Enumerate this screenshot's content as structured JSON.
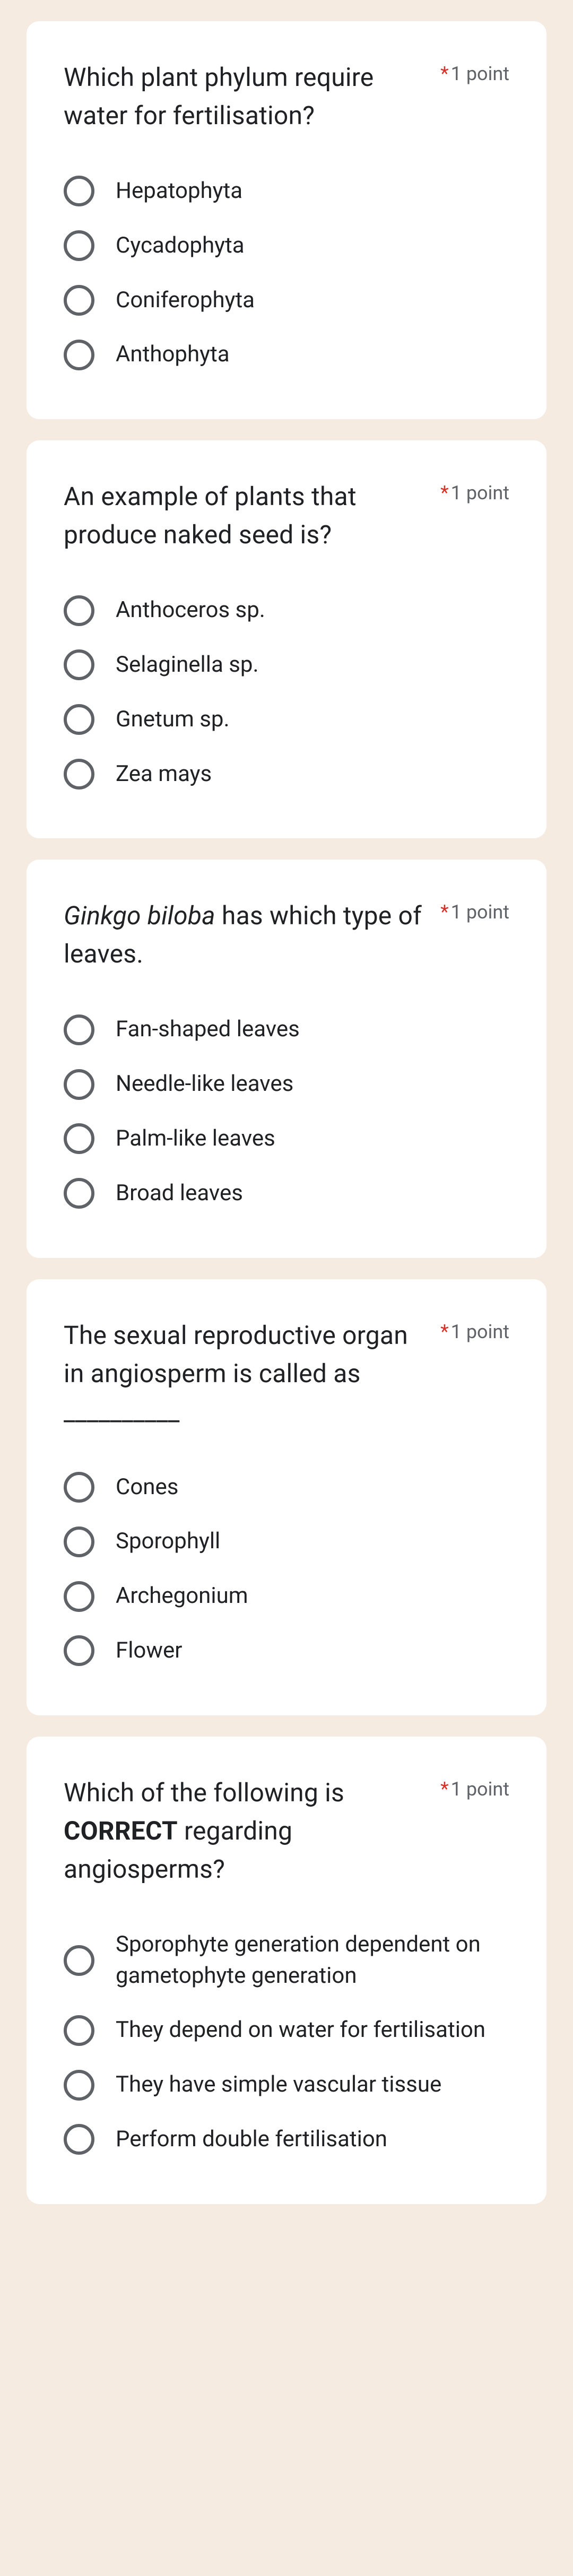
{
  "points_label": "1 point",
  "questions": [
    {
      "text_html": "Which plant phylum require water for fertilisation?",
      "options": [
        "Hepatophyta",
        "Cycadophyta",
        "Coniferophyta",
        "Anthophyta"
      ]
    },
    {
      "text_html": "An example of plants that produce naked seed is?",
      "options": [
        "Anthoceros sp.",
        "Selaginella sp.",
        "Gnetum sp.",
        "Zea mays"
      ]
    },
    {
      "text_html": "<em>Ginkgo biloba</em> has which type of leaves.",
      "options": [
        "Fan-shaped leaves",
        "Needle-like leaves",
        "Palm-like leaves",
        "Broad leaves"
      ]
    },
    {
      "text_html": "The sexual reproductive organ in angiosperm is called as __________",
      "options": [
        "Cones",
        "Sporophyll",
        "Archegonium",
        "Flower"
      ]
    },
    {
      "text_html": "Which of the following is <b>CORRECT</b> regarding angiosperms?",
      "options": [
        "Sporophyte generation dependent on gametophyte generation",
        "They depend on water for fertilisation",
        "They have simple vascular tissue",
        "Perform double fertilisation"
      ]
    }
  ]
}
